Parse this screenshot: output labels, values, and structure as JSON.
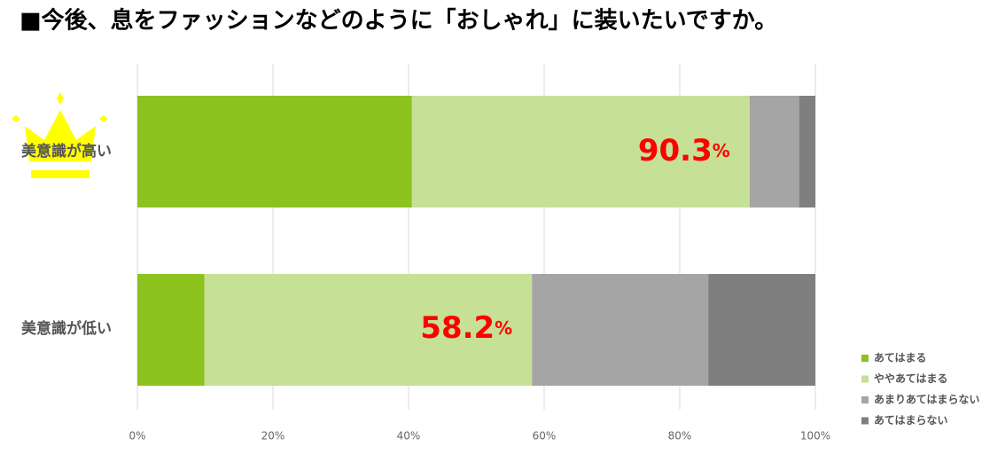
{
  "chart_data": {
    "type": "bar",
    "orientation": "horizontal",
    "stacked": true,
    "title": "■今後、息をファッションなどのように「おしゃれ」に装いたいですか。",
    "categories": [
      "美意識が高い",
      "美意識が低い"
    ],
    "series": [
      {
        "name": "あてはまる",
        "color": "#8cc21e",
        "values": [
          40.5,
          9.9
        ]
      },
      {
        "name": "ややあてはまる",
        "color": "#c6e096",
        "values": [
          49.8,
          48.3
        ]
      },
      {
        "name": "あまりあてはまらない",
        "color": "#a5a5a5",
        "values": [
          7.3,
          26.0
        ]
      },
      {
        "name": "あてはまらない",
        "color": "#7f7f7f",
        "values": [
          2.4,
          15.8
        ]
      }
    ],
    "totals": [
      {
        "value": 90.3,
        "label": "90.3%"
      },
      {
        "value": 58.2,
        "label": "58.2%"
      }
    ],
    "xlim": [
      0,
      100
    ],
    "xticks": [
      {
        "value": 0,
        "label": "0%"
      },
      {
        "value": 20,
        "label": "20%"
      },
      {
        "value": 40,
        "label": "40%"
      },
      {
        "value": 60,
        "label": "60%"
      },
      {
        "value": 80,
        "label": "80%"
      },
      {
        "value": 100,
        "label": "100%"
      }
    ],
    "grid": true,
    "legend": "bottom-right"
  }
}
